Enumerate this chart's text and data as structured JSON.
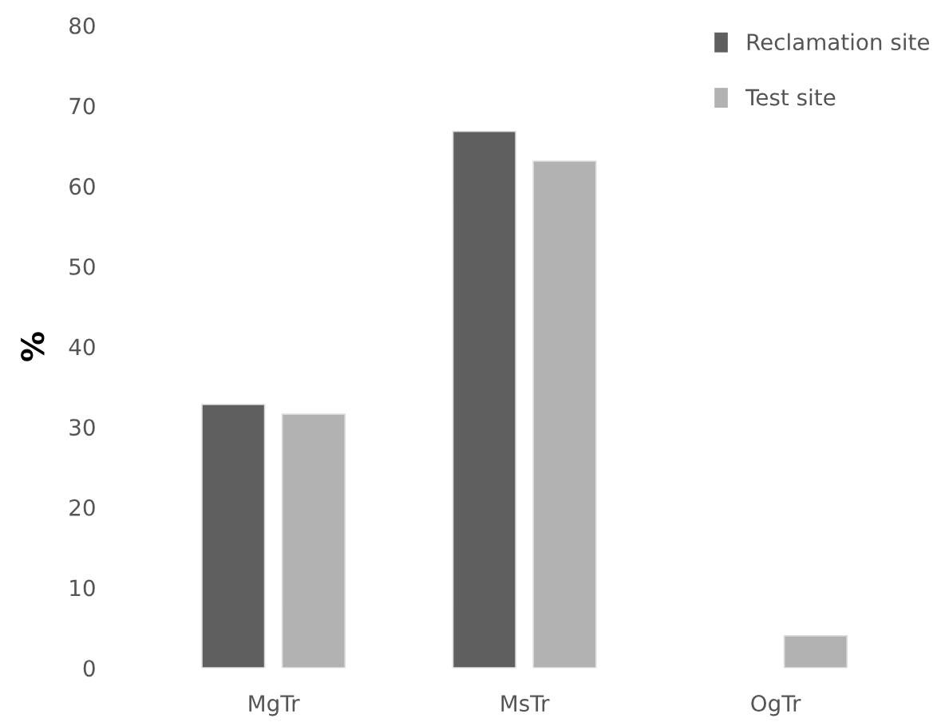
{
  "chart_data": {
    "type": "bar",
    "ylabel": "%",
    "categories": [
      "MgTr",
      "MsTr",
      "OgTr"
    ],
    "series": [
      {
        "name": "Reclamation site",
        "color": "#5f5f5f",
        "values": [
          32.8,
          66.8,
          null
        ]
      },
      {
        "name": "Test site",
        "color": "#b2b2b2",
        "values": [
          31.6,
          63.1,
          4.0
        ]
      }
    ],
    "ylim": [
      0,
      80
    ],
    "yticks": [
      0,
      10,
      20,
      30,
      40,
      50,
      60,
      70,
      80
    ],
    "grid": false,
    "legend": "top right"
  }
}
